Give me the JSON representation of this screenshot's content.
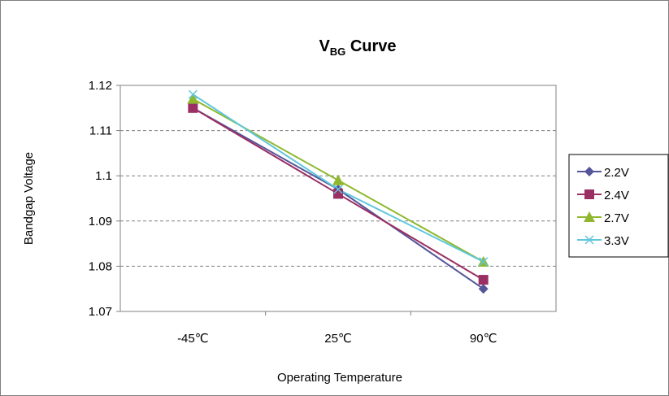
{
  "chart_data": {
    "type": "line",
    "title": {
      "main": "V",
      "sub": "BG",
      "rest": " Curve"
    },
    "xlabel": "Operating Temperature",
    "ylabel": "Bandgap Voltage",
    "categories": [
      "-45℃",
      "25℃",
      "90℃"
    ],
    "ylim": [
      1.07,
      1.12
    ],
    "yticks": [
      "1.07",
      "1.08",
      "1.09",
      "1.1",
      "1.11",
      "1.12"
    ],
    "ytick_values": [
      1.07,
      1.08,
      1.09,
      1.1,
      1.11,
      1.12
    ],
    "grid": "horizontal dashed",
    "legend_position": "right",
    "series": [
      {
        "name": "2.2V",
        "values": [
          1.115,
          1.097,
          1.075
        ],
        "color": "#55559a",
        "marker": "diamond"
      },
      {
        "name": "2.4V",
        "values": [
          1.115,
          1.096,
          1.077
        ],
        "color": "#9a2f63",
        "marker": "square"
      },
      {
        "name": "2.7V",
        "values": [
          1.117,
          1.099,
          1.081
        ],
        "color": "#8fb82f",
        "marker": "triangle"
      },
      {
        "name": "3.3V",
        "values": [
          1.118,
          1.097,
          1.081
        ],
        "color": "#5fc6dc",
        "marker": "x"
      }
    ]
  }
}
